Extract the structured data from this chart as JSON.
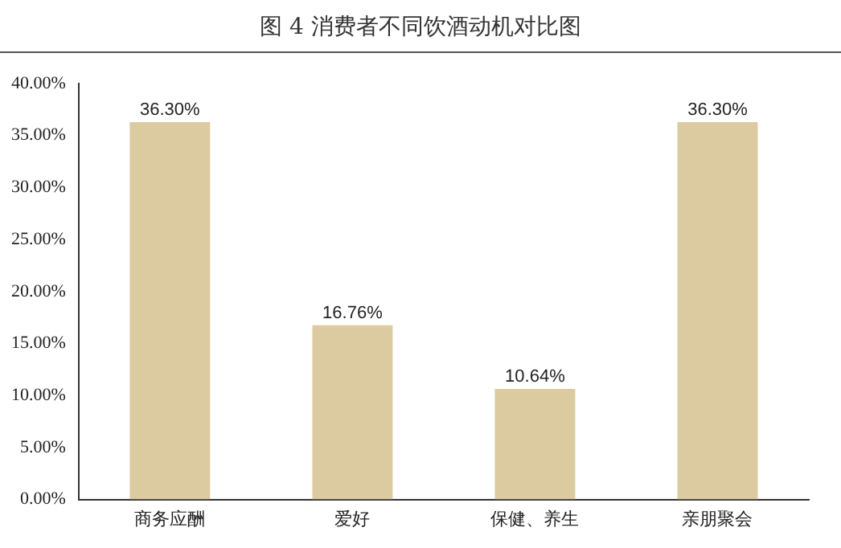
{
  "chart_data": {
    "type": "bar",
    "title": "图 4  消费者不同饮酒动机对比图",
    "categories": [
      "商务应酬",
      "爱好",
      "保健、养生",
      "亲朋聚会"
    ],
    "values": [
      36.3,
      16.76,
      10.64,
      36.3
    ],
    "value_labels": [
      "36.30%",
      "16.76%",
      "10.64%",
      "36.30%"
    ],
    "color": "#dccaa0",
    "ylim": [
      0,
      40
    ],
    "yticks": [
      {
        "value": 0,
        "label": "0.00%"
      },
      {
        "value": 5,
        "label": "5.00%"
      },
      {
        "value": 10,
        "label": "10.00%"
      },
      {
        "value": 15,
        "label": "15.00%"
      },
      {
        "value": 20,
        "label": "20.00%"
      },
      {
        "value": 25,
        "label": "25.00%"
      },
      {
        "value": 30,
        "label": "30.00%"
      },
      {
        "value": 35,
        "label": "35.00%"
      },
      {
        "value": 40,
        "label": "40.00%"
      }
    ],
    "grid": false
  }
}
